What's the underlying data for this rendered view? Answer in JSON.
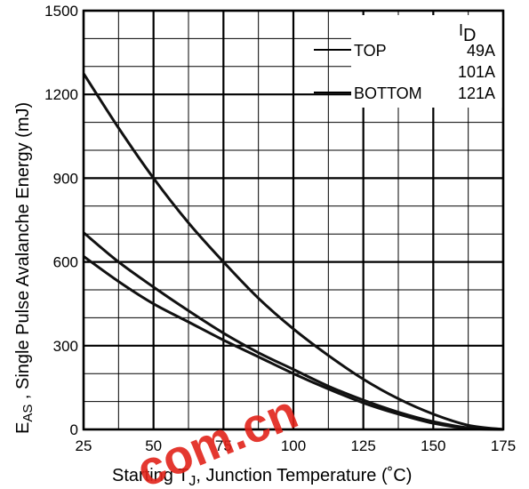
{
  "chart_data": {
    "type": "line",
    "xlabel_prefix": "Starting T",
    "xlabel_sub": "J",
    "xlabel_suffix": ", Junction Temperature (",
    "xlabel_unit": "˚C)",
    "ylabel_main": "E",
    "ylabel_sub": "AS",
    "ylabel_suffix": " , Single Pulse Avalanche Energy (mJ)",
    "xlim": [
      25,
      175
    ],
    "ylim": [
      0,
      1500
    ],
    "x_ticks": [
      25,
      50,
      75,
      100,
      125,
      150,
      175
    ],
    "y_ticks": [
      0,
      300,
      600,
      900,
      1200,
      1500
    ],
    "grid": true,
    "legend": {
      "placement": "top-right",
      "header_main": "I",
      "header_sub": "D",
      "entries": [
        {
          "tag": "TOP",
          "value": "49A"
        },
        {
          "tag": "",
          "value": "101A"
        },
        {
          "tag": "BOTTOM",
          "value": "121A"
        }
      ]
    },
    "series": [
      {
        "x": [
          25,
          37.5,
          50,
          62.5,
          75,
          87.5,
          100,
          112.5,
          125,
          137.5,
          150,
          162.5,
          175
        ],
        "y": [
          1275,
          1080,
          900,
          740,
          600,
          470,
          360,
          265,
          180,
          110,
          55,
          15,
          0
        ]
      },
      {
        "x": [
          25,
          37.5,
          50,
          62.5,
          75,
          87.5,
          100,
          112.5,
          125,
          137.5,
          150,
          162.5,
          175
        ],
        "y": [
          705,
          600,
          510,
          425,
          345,
          275,
          215,
          155,
          105,
          62,
          28,
          6,
          0
        ]
      },
      {
        "x": [
          25,
          37.5,
          50,
          62.5,
          75,
          87.5,
          100,
          112.5,
          125,
          137.5,
          150,
          162.5,
          175
        ],
        "y": [
          620,
          530,
          450,
          385,
          320,
          260,
          200,
          145,
          95,
          55,
          22,
          4,
          0
        ]
      }
    ],
    "watermark": "com.cn"
  }
}
